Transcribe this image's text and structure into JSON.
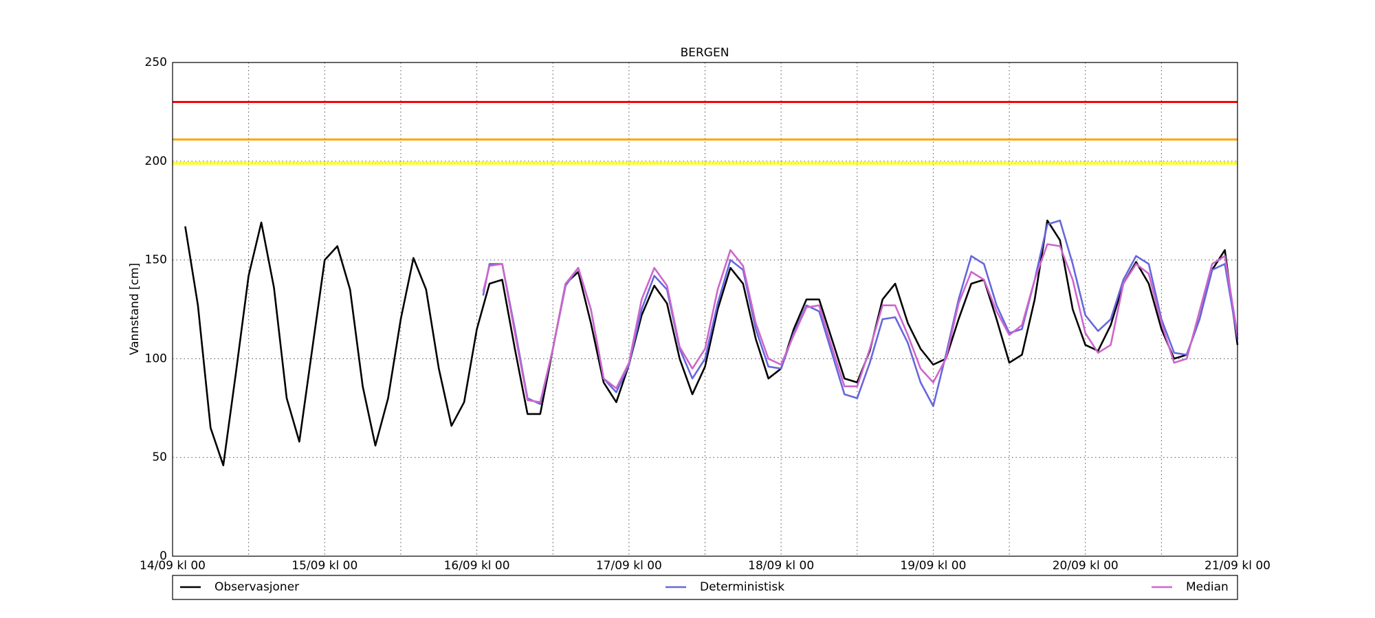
{
  "chart_data": {
    "type": "line",
    "title": "BERGEN",
    "ylabel": "Vannstand [cm]",
    "xlim": [
      0,
      168
    ],
    "xticks": [
      {
        "value": 0,
        "label": "14/09 kl 00"
      },
      {
        "value": 24,
        "label": "15/09 kl 00"
      },
      {
        "value": 48,
        "label": "16/09 kl 00"
      },
      {
        "value": 72,
        "label": "17/09 kl 00"
      },
      {
        "value": 96,
        "label": "18/09 kl 00"
      },
      {
        "value": 120,
        "label": "19/09 kl 00"
      },
      {
        "value": 144,
        "label": "20/09 kl 00"
      },
      {
        "value": 168,
        "label": "21/09 kl 00"
      }
    ],
    "xminor": [
      12,
      36,
      60,
      84,
      108,
      132,
      156
    ],
    "ylim": [
      0,
      250
    ],
    "yticks": [
      0,
      50,
      100,
      150,
      200,
      250
    ],
    "grid": true,
    "hlines": [
      {
        "value": 230,
        "color": "#ff0000",
        "style": "solid"
      },
      {
        "value": 211,
        "color": "#ffa500",
        "style": "solid"
      },
      {
        "value": 199,
        "color": "#ffff33",
        "style": "dotted"
      }
    ],
    "series": [
      {
        "name": "Observasjoner",
        "color": "#000000",
        "x": [
          2,
          4,
          6,
          8,
          10,
          12,
          14,
          16,
          18,
          20,
          22,
          24,
          26,
          28,
          30,
          32,
          34,
          36,
          38,
          40,
          42,
          44,
          46,
          48,
          50,
          52,
          54,
          56,
          58,
          60,
          62,
          64,
          66,
          68,
          70,
          72,
          74,
          76,
          78,
          80,
          82,
          84,
          86,
          88,
          90,
          92,
          94,
          96,
          98,
          100,
          102,
          104,
          106,
          108,
          110,
          112,
          114,
          116,
          118,
          120,
          122,
          124,
          126,
          128,
          130,
          132,
          134,
          136,
          138,
          140,
          142,
          144,
          146,
          148,
          150,
          152,
          154,
          156,
          158,
          160,
          162,
          164,
          166,
          168
        ],
        "values": [
          167,
          127,
          65,
          46,
          93,
          142,
          169,
          136,
          80,
          58,
          104,
          150,
          157,
          135,
          86,
          56,
          80,
          120,
          151,
          135,
          95,
          66,
          78,
          115,
          138,
          140,
          105,
          72,
          72,
          105,
          138,
          144,
          118,
          88,
          78,
          97,
          122,
          137,
          128,
          100,
          82,
          96,
          125,
          146,
          138,
          110,
          90,
          95,
          115,
          130,
          130,
          110,
          90,
          88,
          104,
          130,
          138,
          118,
          105,
          97,
          100,
          120,
          138,
          140,
          120,
          98,
          102,
          130,
          170,
          160,
          125,
          107,
          104,
          117,
          138,
          149,
          138,
          115,
          100,
          102,
          120,
          145,
          155,
          107
        ]
      },
      {
        "name": "Deterministisk",
        "color": "#6666dd",
        "x": [
          49,
          50,
          52,
          54,
          56,
          58,
          60,
          62,
          64,
          66,
          68,
          70,
          72,
          74,
          76,
          78,
          80,
          82,
          84,
          86,
          88,
          90,
          92,
          94,
          96,
          98,
          100,
          102,
          104,
          106,
          108,
          110,
          112,
          114,
          116,
          118,
          120,
          122,
          124,
          126,
          128,
          130,
          132,
          134,
          136,
          138,
          140,
          142,
          144,
          146,
          148,
          150,
          152,
          154,
          156,
          158,
          160,
          162,
          164,
          166,
          168
        ],
        "values": [
          132,
          148,
          148,
          115,
          80,
          77,
          105,
          137,
          146,
          125,
          90,
          83,
          97,
          125,
          142,
          135,
          105,
          90,
          100,
          128,
          150,
          145,
          115,
          96,
          95,
          113,
          127,
          124,
          103,
          82,
          80,
          98,
          120,
          121,
          108,
          88,
          76,
          102,
          130,
          152,
          148,
          127,
          113,
          115,
          140,
          168,
          170,
          148,
          122,
          114,
          120,
          140,
          152,
          148,
          120,
          103,
          102,
          120,
          145,
          148,
          110
        ]
      },
      {
        "name": "Median",
        "color": "#cc66cc",
        "x": [
          49,
          50,
          52,
          54,
          56,
          58,
          60,
          62,
          64,
          66,
          68,
          70,
          72,
          74,
          76,
          78,
          80,
          82,
          84,
          86,
          88,
          90,
          92,
          94,
          96,
          98,
          100,
          102,
          104,
          106,
          108,
          110,
          112,
          114,
          116,
          118,
          120,
          122,
          124,
          126,
          128,
          130,
          132,
          134,
          136,
          138,
          140,
          142,
          144,
          146,
          148,
          150,
          152,
          154,
          156,
          158,
          160,
          162,
          164,
          166,
          168
        ],
        "values": [
          134,
          147,
          148,
          113,
          79,
          78,
          105,
          138,
          146,
          125,
          90,
          85,
          98,
          130,
          146,
          137,
          106,
          95,
          105,
          135,
          155,
          147,
          118,
          100,
          97,
          112,
          126,
          127,
          106,
          86,
          86,
          105,
          127,
          127,
          112,
          95,
          88,
          100,
          128,
          144,
          140,
          124,
          112,
          117,
          140,
          158,
          157,
          140,
          113,
          103,
          107,
          138,
          148,
          143,
          118,
          98,
          100,
          124,
          148,
          152,
          112
        ]
      }
    ]
  }
}
